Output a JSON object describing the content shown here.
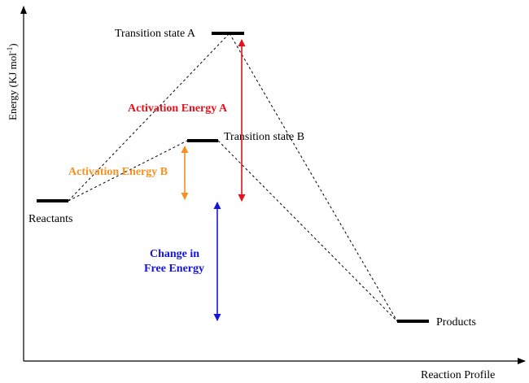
{
  "axes": {
    "y_label_main": "Energy (KJ mol",
    "y_label_sup": "-1",
    "y_label_close": ")",
    "x_label": "Reaction Profile"
  },
  "levels": {
    "reactants": "Reactants",
    "transition_a": "Transition state A",
    "transition_b": "Transition state B",
    "products": "Products"
  },
  "annotations": {
    "activation_a": "Activation Energy A",
    "activation_b": "Activation Energy B",
    "free_energy_line1": "Change in",
    "free_energy_line2": "Free Energy"
  },
  "colors": {
    "activation_a": "#e8101a",
    "activation_b": "#f7901e",
    "free_energy": "#1414e0",
    "level": "#000000"
  }
}
